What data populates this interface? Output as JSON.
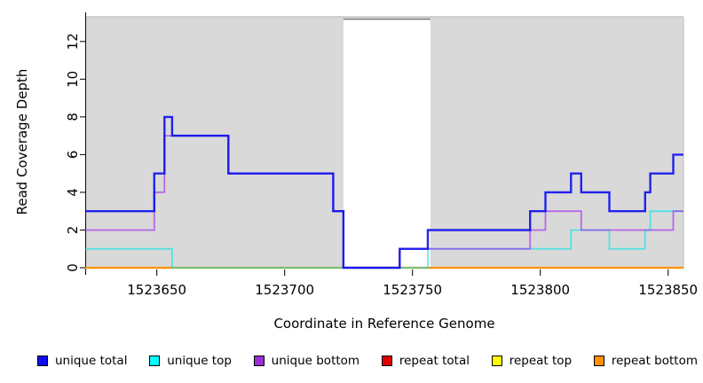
{
  "chart_data": {
    "type": "line",
    "title": "",
    "xlabel": "Coordinate in Reference Genome",
    "ylabel": "Read Coverage Depth",
    "xlim": [
      1523622,
      1523856
    ],
    "ylim": [
      0,
      13.4
    ],
    "x_ticks": [
      1523650,
      1523700,
      1523750,
      1523800,
      1523850
    ],
    "y_ticks": [
      0,
      2,
      4,
      6,
      8,
      10,
      12
    ],
    "plot_bg": "#d9d9d9",
    "grid": false,
    "legend_position": "bottom",
    "gap_region": {
      "from": 1523723,
      "to": 1523757
    },
    "series": [
      {
        "name": "repeat total",
        "color": "#e00000",
        "opacity": 1,
        "width": 1.5,
        "points": [
          [
            1523622,
            0
          ],
          [
            1523856,
            0
          ]
        ]
      },
      {
        "name": "repeat top",
        "color": "#ffff00",
        "opacity": 1,
        "width": 1.5,
        "points": [
          [
            1523622,
            0
          ],
          [
            1523856,
            0
          ]
        ]
      },
      {
        "name": "repeat bottom",
        "color": "#ff9100",
        "opacity": 1,
        "width": 2.2,
        "points": [
          [
            1523622,
            0
          ],
          [
            1523856,
            0
          ]
        ]
      },
      {
        "name": "unique top",
        "color": "#00e5e5",
        "opacity": 0.62,
        "width": 1.8,
        "points": [
          [
            1523622,
            1
          ],
          [
            1523656,
            1
          ],
          [
            1523656,
            0
          ],
          [
            1523756,
            0
          ],
          [
            1523756,
            1
          ],
          [
            1523812,
            1
          ],
          [
            1523812,
            2
          ],
          [
            1523827,
            2
          ],
          [
            1523827,
            1
          ],
          [
            1523841,
            1
          ],
          [
            1523841,
            2
          ],
          [
            1523843,
            2
          ],
          [
            1523843,
            3
          ],
          [
            1523856,
            3
          ]
        ]
      },
      {
        "name": "unique bottom",
        "color": "#a020f0",
        "opacity": 0.62,
        "width": 1.8,
        "points": [
          [
            1523622,
            2
          ],
          [
            1523649,
            2
          ],
          [
            1523649,
            4
          ],
          [
            1523653,
            4
          ],
          [
            1523653,
            7
          ],
          [
            1523678,
            7
          ],
          [
            1523678,
            5
          ],
          [
            1523719,
            5
          ],
          [
            1523719,
            3
          ],
          [
            1523723,
            3
          ],
          [
            1523723,
            0
          ],
          [
            1523745,
            0
          ],
          [
            1523745,
            1
          ],
          [
            1523796,
            1
          ],
          [
            1523796,
            2
          ],
          [
            1523802,
            2
          ],
          [
            1523802,
            3
          ],
          [
            1523816,
            3
          ],
          [
            1523816,
            2
          ],
          [
            1523852,
            2
          ],
          [
            1523852,
            3
          ],
          [
            1523856,
            3
          ]
        ]
      },
      {
        "name": "unique total",
        "color": "#0d0dee",
        "opacity": 0.9,
        "width": 2.4,
        "points": [
          [
            1523622,
            3
          ],
          [
            1523649,
            3
          ],
          [
            1523649,
            5
          ],
          [
            1523653,
            5
          ],
          [
            1523653,
            8
          ],
          [
            1523656,
            8
          ],
          [
            1523656,
            7
          ],
          [
            1523678,
            7
          ],
          [
            1523678,
            5
          ],
          [
            1523719,
            5
          ],
          [
            1523719,
            3
          ],
          [
            1523723,
            3
          ],
          [
            1523723,
            0
          ],
          [
            1523745,
            0
          ],
          [
            1523745,
            1
          ],
          [
            1523756,
            1
          ],
          [
            1523756,
            2
          ],
          [
            1523796,
            2
          ],
          [
            1523796,
            3
          ],
          [
            1523802,
            3
          ],
          [
            1523802,
            4
          ],
          [
            1523812,
            4
          ],
          [
            1523812,
            5
          ],
          [
            1523816,
            5
          ],
          [
            1523816,
            4
          ],
          [
            1523827,
            4
          ],
          [
            1523827,
            3
          ],
          [
            1523841,
            3
          ],
          [
            1523841,
            4
          ],
          [
            1523843,
            4
          ],
          [
            1523843,
            5
          ],
          [
            1523852,
            5
          ],
          [
            1523852,
            6
          ],
          [
            1523856,
            6
          ]
        ]
      }
    ],
    "legend": [
      {
        "label": "unique total",
        "color": "#0d0dee"
      },
      {
        "label": "unique top",
        "color": "#00ffff"
      },
      {
        "label": "unique bottom",
        "color": "#9a2fd4"
      },
      {
        "label": "repeat total",
        "color": "#e00000"
      },
      {
        "label": "repeat top",
        "color": "#ffff00"
      },
      {
        "label": "repeat bottom",
        "color": "#ff9100"
      }
    ]
  }
}
